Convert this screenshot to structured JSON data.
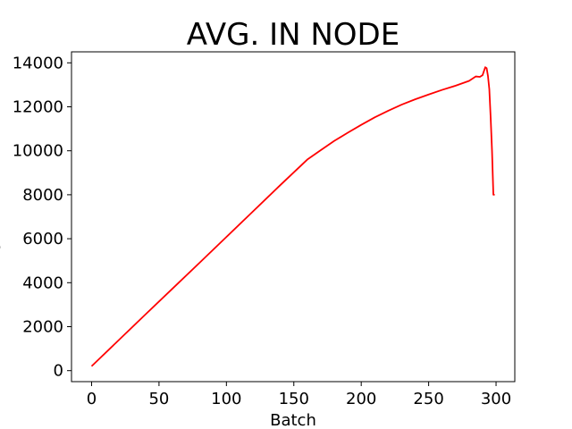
{
  "chart_data": {
    "type": "line",
    "title": "AVG. IN NODE",
    "xlabel": "Batch",
    "ylabel": "s",
    "xlim": [
      -14.9,
      313.9
    ],
    "ylim": [
      -500,
      14500
    ],
    "xticks": [
      0,
      50,
      100,
      150,
      200,
      250,
      300
    ],
    "yticks": [
      0,
      2000,
      4000,
      6000,
      8000,
      10000,
      12000,
      14000
    ],
    "grid": false,
    "series": [
      {
        "color": "#ff0000",
        "x": [
          0,
          20,
          40,
          60,
          80,
          100,
          120,
          140,
          160,
          170,
          180,
          190,
          200,
          210,
          220,
          230,
          240,
          250,
          260,
          270,
          280,
          285,
          288,
          290,
          292,
          293,
          294,
          295,
          296,
          297,
          298,
          299
        ],
        "y": [
          200,
          1380,
          2560,
          3730,
          4900,
          6080,
          7260,
          8440,
          9600,
          10030,
          10450,
          10820,
          11180,
          11520,
          11820,
          12100,
          12340,
          12560,
          12770,
          12960,
          13180,
          13380,
          13360,
          13440,
          13800,
          13760,
          13400,
          12800,
          11500,
          10000,
          8000,
          8000
        ]
      }
    ]
  }
}
